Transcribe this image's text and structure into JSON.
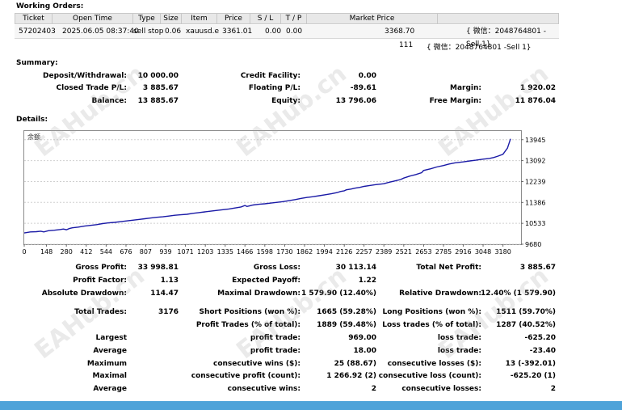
{
  "working_orders": {
    "title": "Working Orders:",
    "columns": [
      "Ticket",
      "Open Time",
      "Type",
      "Size",
      "Item",
      "Price",
      "S / L",
      "T / P",
      "Market Price"
    ],
    "row": {
      "ticket": "57202403",
      "open_time": "2025.06.05 08:37:40",
      "type": "sell stop",
      "size": "0.06",
      "item": "xauusd.e",
      "price": "3361.01",
      "sl": "0.00",
      "tp": "0.00",
      "market_price": "3368.70",
      "comment": "{ 微信：2048764801 -Sell 1}"
    },
    "extra_row": {
      "count": "111",
      "comment": "{ 微信：2048764801 -Sell 1}"
    }
  },
  "summary": {
    "title": "Summary:",
    "deposit_label": "Deposit/Withdrawal:",
    "deposit": "10 000.00",
    "credit_label": "Credit Facility:",
    "credit": "0.00",
    "closed_label": "Closed Trade P/L:",
    "closed": "3 885.67",
    "floating_label": "Floating P/L:",
    "floating": "-89.61",
    "margin_label": "Margin:",
    "margin": "1 920.02",
    "balance_label": "Balance:",
    "balance": "13 885.67",
    "equity_label": "Equity:",
    "equity": "13 796.06",
    "free_margin_label": "Free Margin:",
    "free_margin": "11 876.04"
  },
  "details": {
    "title": "Details:",
    "stats": {
      "gross_profit_label": "Gross Profit:",
      "gross_profit": "33 998.81",
      "gross_loss_label": "Gross Loss:",
      "gross_loss": "30 113.14",
      "net_profit_label": "Total Net Profit:",
      "net_profit": "3 885.67",
      "profit_factor_label": "Profit Factor:",
      "profit_factor": "1.13",
      "expected_payoff_label": "Expected Payoff:",
      "expected_payoff": "1.22",
      "abs_dd_label": "Absolute Drawdown:",
      "abs_dd": "114.47",
      "max_dd_label": "Maximal Drawdown:",
      "max_dd": "1 579.90 (12.40%)",
      "rel_dd_label": "Relative Drawdown:",
      "rel_dd": "12.40% (1 579.90)",
      "total_trades_label": "Total Trades:",
      "total_trades": "3176",
      "short_label": "Short Positions (won %):",
      "short": "1665 (59.28%)",
      "long_label": "Long Positions (won %):",
      "long": "1511 (59.70%)",
      "profit_trades_label": "Profit Trades (% of total):",
      "profit_trades": "1889 (59.48%)",
      "loss_trades_label": "Loss trades (% of total):",
      "loss_trades": "1287 (40.52%)",
      "largest_label": "Largest",
      "largest_profit_label": "profit trade:",
      "largest_profit": "969.00",
      "largest_loss_label": "loss trade:",
      "largest_loss": "-625.20",
      "average_label": "Average",
      "average_profit_label": "profit trade:",
      "average_profit": "18.00",
      "average_loss_label": "loss trade:",
      "average_loss": "-23.40",
      "maximum_label": "Maximum",
      "max_wins_label": "consecutive wins ($):",
      "max_wins": "25 (88.67)",
      "max_losses_label": "consecutive losses ($):",
      "max_losses": "13 (-392.01)",
      "maximal_label": "Maximal",
      "maximal_profit_label": "consecutive profit (count):",
      "maximal_profit": "1 266.92 (2)",
      "maximal_loss_label": "consecutive loss (count):",
      "maximal_loss": "-625.20 (1)",
      "average2_label": "Average",
      "avg_wins_label": "consecutive wins:",
      "avg_wins": "2",
      "avg_losses_label": "consecutive losses:",
      "avg_losses": "2"
    }
  },
  "chart_data": {
    "type": "line",
    "title": "余额",
    "xlabel": "",
    "ylabel": "",
    "xlim": [
      0,
      3300
    ],
    "ylim": [
      9680,
      14300
    ],
    "x_ticks": [
      "0",
      "148",
      "280",
      "412",
      "544",
      "676",
      "807",
      "939",
      "1071",
      "1203",
      "1335",
      "1466",
      "1598",
      "1730",
      "1862",
      "1994",
      "2126",
      "2257",
      "2389",
      "2521",
      "2653",
      "2785",
      "2916",
      "3048",
      "3180"
    ],
    "y_ticks": [
      "13945",
      "13092",
      "12239",
      "11386",
      "10533",
      "9680"
    ],
    "color": "#1a1aa6",
    "series": [
      {
        "x": [
          0,
          40,
          80,
          110,
          130,
          160,
          200,
          240,
          260,
          280,
          300,
          320,
          360,
          400,
          440,
          480,
          520,
          560,
          600,
          640,
          680,
          720,
          760,
          800,
          840,
          880,
          920,
          960,
          1000,
          1040,
          1080,
          1120,
          1160,
          1200,
          1240,
          1280,
          1320,
          1360,
          1400,
          1440,
          1466,
          1480,
          1500,
          1520,
          1560,
          1598,
          1640,
          1680,
          1720,
          1760,
          1800,
          1840,
          1880,
          1920,
          1960,
          2000,
          2040,
          2080,
          2100,
          2126,
          2140,
          2170,
          2200,
          2230,
          2257,
          2290,
          2330,
          2389,
          2420,
          2460,
          2500,
          2521,
          2560,
          2600,
          2640,
          2653,
          2700,
          2740,
          2785,
          2820,
          2860,
          2916,
          2960,
          3000,
          3048,
          3090,
          3120,
          3150,
          3180,
          3210,
          3230
        ],
        "y": [
          10140,
          10180,
          10190,
          10210,
          10180,
          10230,
          10250,
          10280,
          10300,
          10270,
          10320,
          10350,
          10380,
          10420,
          10450,
          10480,
          10520,
          10550,
          10570,
          10600,
          10630,
          10660,
          10690,
          10720,
          10750,
          10780,
          10800,
          10830,
          10860,
          10880,
          10900,
          10940,
          10970,
          11000,
          11030,
          11060,
          11090,
          11120,
          11160,
          11200,
          11260,
          11220,
          11250,
          11280,
          11310,
          11330,
          11360,
          11390,
          11420,
          11460,
          11500,
          11550,
          11590,
          11620,
          11660,
          11700,
          11740,
          11790,
          11830,
          11860,
          11900,
          11930,
          11970,
          12000,
          12040,
          12070,
          12110,
          12150,
          12200,
          12260,
          12320,
          12380,
          12460,
          12520,
          12600,
          12690,
          12760,
          12830,
          12890,
          12950,
          13000,
          13040,
          13080,
          13110,
          13150,
          13180,
          13220,
          13280,
          13350,
          13600,
          13980
        ]
      }
    ]
  }
}
